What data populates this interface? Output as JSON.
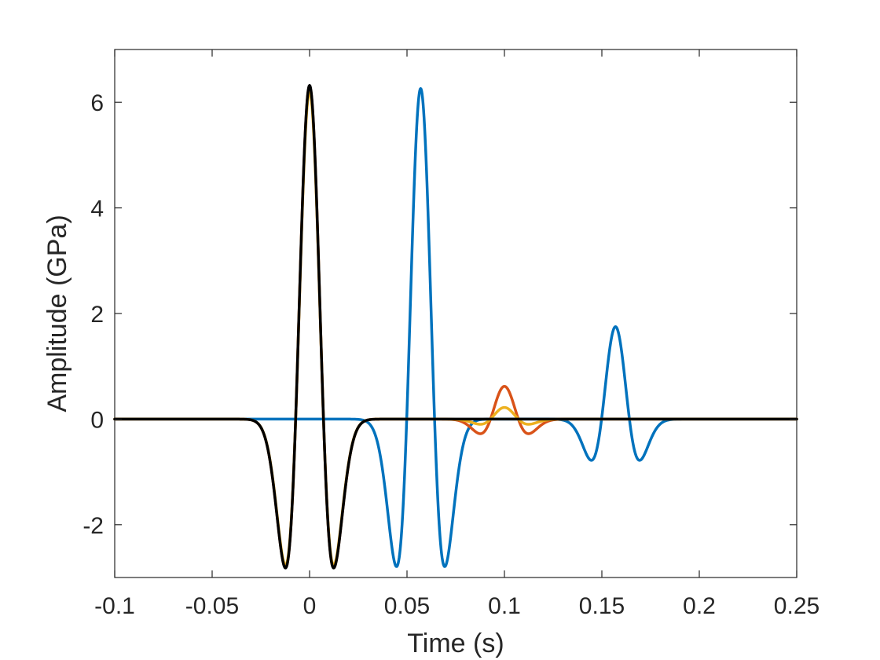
{
  "chart_data": {
    "type": "line",
    "title": "",
    "xlabel": "Time (s)",
    "ylabel": "Amplitude (GPa)",
    "xlim": [
      -0.1,
      0.25
    ],
    "ylim": [
      -3,
      7
    ],
    "xticks": [
      -0.1,
      -0.05,
      0,
      0.05,
      0.1,
      0.15,
      0.2,
      0.25
    ],
    "xtick_labels": [
      "-0.1",
      "-0.05",
      "0",
      "0.05",
      "0.1",
      "0.15",
      "0.2",
      "0.25"
    ],
    "yticks": [
      -2,
      0,
      2,
      4,
      6
    ],
    "ytick_labels": [
      "-2",
      "0",
      "2",
      "4",
      "6"
    ],
    "grid": false,
    "legend": "none",
    "series": [
      {
        "color": "#0072BD",
        "wavelets": [
          {
            "center": 0.057,
            "amplitude": 6.26,
            "peak_frequency": 31.5
          },
          {
            "center": 0.157,
            "amplitude": 1.75,
            "peak_frequency": 31.5
          }
        ],
        "samples": [
          [
            -0.1,
            0
          ],
          [
            0.027,
            0
          ],
          [
            0.047,
            -2.8
          ],
          [
            0.057,
            6.26
          ],
          [
            0.067,
            -2.8
          ],
          [
            0.09,
            0
          ],
          [
            0.127,
            0
          ],
          [
            0.147,
            -0.78
          ],
          [
            0.157,
            1.75
          ],
          [
            0.167,
            -0.78
          ],
          [
            0.19,
            0
          ],
          [
            0.25,
            0
          ]
        ]
      },
      {
        "color": "#D95319",
        "wavelets": [
          {
            "center": 0.0,
            "amplitude": 6.3,
            "peak_frequency": 31.5
          },
          {
            "center": 0.1,
            "amplitude": 0.62,
            "peak_frequency": 31.5
          }
        ],
        "samples": [
          [
            -0.1,
            0
          ],
          [
            -0.03,
            0
          ],
          [
            -0.01,
            -2.8
          ],
          [
            0.0,
            6.3
          ],
          [
            0.01,
            -2.8
          ],
          [
            0.03,
            0
          ],
          [
            0.07,
            0
          ],
          [
            0.09,
            -0.28
          ],
          [
            0.1,
            0.62
          ],
          [
            0.11,
            -0.28
          ],
          [
            0.13,
            0
          ],
          [
            0.25,
            0
          ]
        ]
      },
      {
        "color": "#EDB120",
        "wavelets": [
          {
            "center": 0.0,
            "amplitude": 6.2,
            "peak_frequency": 31.5
          },
          {
            "center": 0.1,
            "amplitude": 0.22,
            "peak_frequency": 31.5
          }
        ],
        "samples": [
          [
            -0.1,
            0
          ],
          [
            -0.03,
            0
          ],
          [
            -0.01,
            -2.75
          ],
          [
            0.0,
            6.2
          ],
          [
            0.01,
            -2.75
          ],
          [
            0.03,
            0
          ],
          [
            0.07,
            0
          ],
          [
            0.09,
            -0.1
          ],
          [
            0.1,
            0.22
          ],
          [
            0.11,
            -0.1
          ],
          [
            0.13,
            0
          ],
          [
            0.25,
            0
          ]
        ]
      },
      {
        "color": "#000000",
        "wavelets": [
          {
            "center": 0.0,
            "amplitude": 6.32,
            "peak_frequency": 31.5
          }
        ],
        "samples": [
          [
            -0.1,
            0
          ],
          [
            -0.03,
            0
          ],
          [
            -0.01,
            -2.82
          ],
          [
            0.0,
            6.32
          ],
          [
            0.01,
            -2.82
          ],
          [
            0.03,
            0
          ],
          [
            0.25,
            0
          ]
        ]
      }
    ]
  }
}
